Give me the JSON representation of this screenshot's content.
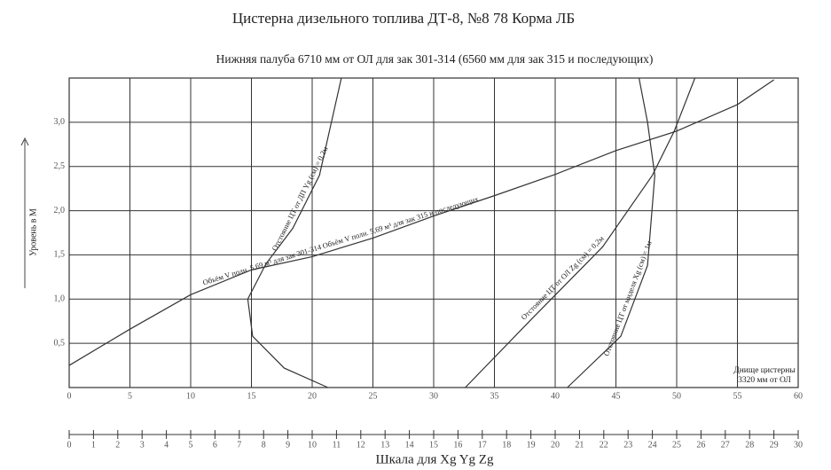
{
  "chart_data": {
    "type": "line",
    "title": "Цистерна дизельного топлива ДТ-8, №8   78 Корма ЛБ",
    "subtitle": "Нижняя палуба  6710 мм от ОЛ для зак 301-314 (6560 мм для зак 315 и последующих)",
    "ylabel": "Уровень в М",
    "x2label": "Шкала для Xg Yg Zg",
    "annotation": [
      "Днище цистерны",
      "3320 мм от ОЛ"
    ],
    "xlim": [
      0,
      60
    ],
    "xticks": [
      0,
      5,
      10,
      15,
      20,
      25,
      30,
      35,
      40,
      45,
      50,
      55,
      60
    ],
    "ylim": [
      0,
      3.5
    ],
    "yticks": [
      {
        "value": 0.5,
        "label": "0,5"
      },
      {
        "value": 1.0,
        "label": "1,0"
      },
      {
        "value": 1.5,
        "label": "1,5"
      },
      {
        "value": 2.0,
        "label": "2,0"
      },
      {
        "value": 2.5,
        "label": "2,5"
      },
      {
        "value": 3.0,
        "label": "3,0"
      }
    ],
    "x2lim": [
      0,
      30
    ],
    "x2ticks": [
      0,
      1,
      2,
      3,
      4,
      5,
      6,
      7,
      8,
      9,
      10,
      11,
      12,
      13,
      14,
      15,
      16,
      17,
      18,
      19,
      20,
      21,
      22,
      23,
      24,
      25,
      26,
      27,
      28,
      29,
      30
    ],
    "grid": true,
    "series": [
      {
        "name": "Объём V полн. 5,69 м³ для зак 301-314   Объём V полн. 5,69 м³ для зак 315 и последующих",
        "color": "#333333",
        "x": [
          0,
          5,
          10,
          15,
          20,
          25,
          30,
          35,
          40,
          45,
          50,
          55,
          58
        ],
        "values": [
          0.25,
          0.66,
          1.05,
          1.33,
          1.48,
          1.69,
          1.94,
          2.17,
          2.41,
          2.68,
          2.9,
          3.2,
          3.48
        ]
      },
      {
        "name": "Отстояние ЦТ от ДП Yg (см) = 0,2м",
        "color": "#333333",
        "x": [
          22.4,
          20.6,
          18.4,
          16.2,
          14.7,
          15.1,
          17.7,
          21.3
        ],
        "values": [
          3.5,
          2.4,
          1.8,
          1.4,
          1.0,
          0.58,
          0.22,
          0
        ]
      },
      {
        "name": "Отстояние ЦТ от ОЛ Zg (см) = 0,2м",
        "color": "#333333",
        "x": [
          32.6,
          38.1,
          43.9,
          48,
          49.8,
          51.5
        ],
        "values": [
          0,
          0.78,
          1.59,
          2.4,
          2.9,
          3.5
        ]
      },
      {
        "name": "Отстояние ЦТ от миделя Xg (см) = 1м",
        "color": "#333333",
        "x": [
          41,
          45.4,
          47.6,
          48.2,
          47.6,
          46.9
        ],
        "values": [
          0,
          0.58,
          1.38,
          2.4,
          3.0,
          3.5
        ]
      }
    ]
  }
}
